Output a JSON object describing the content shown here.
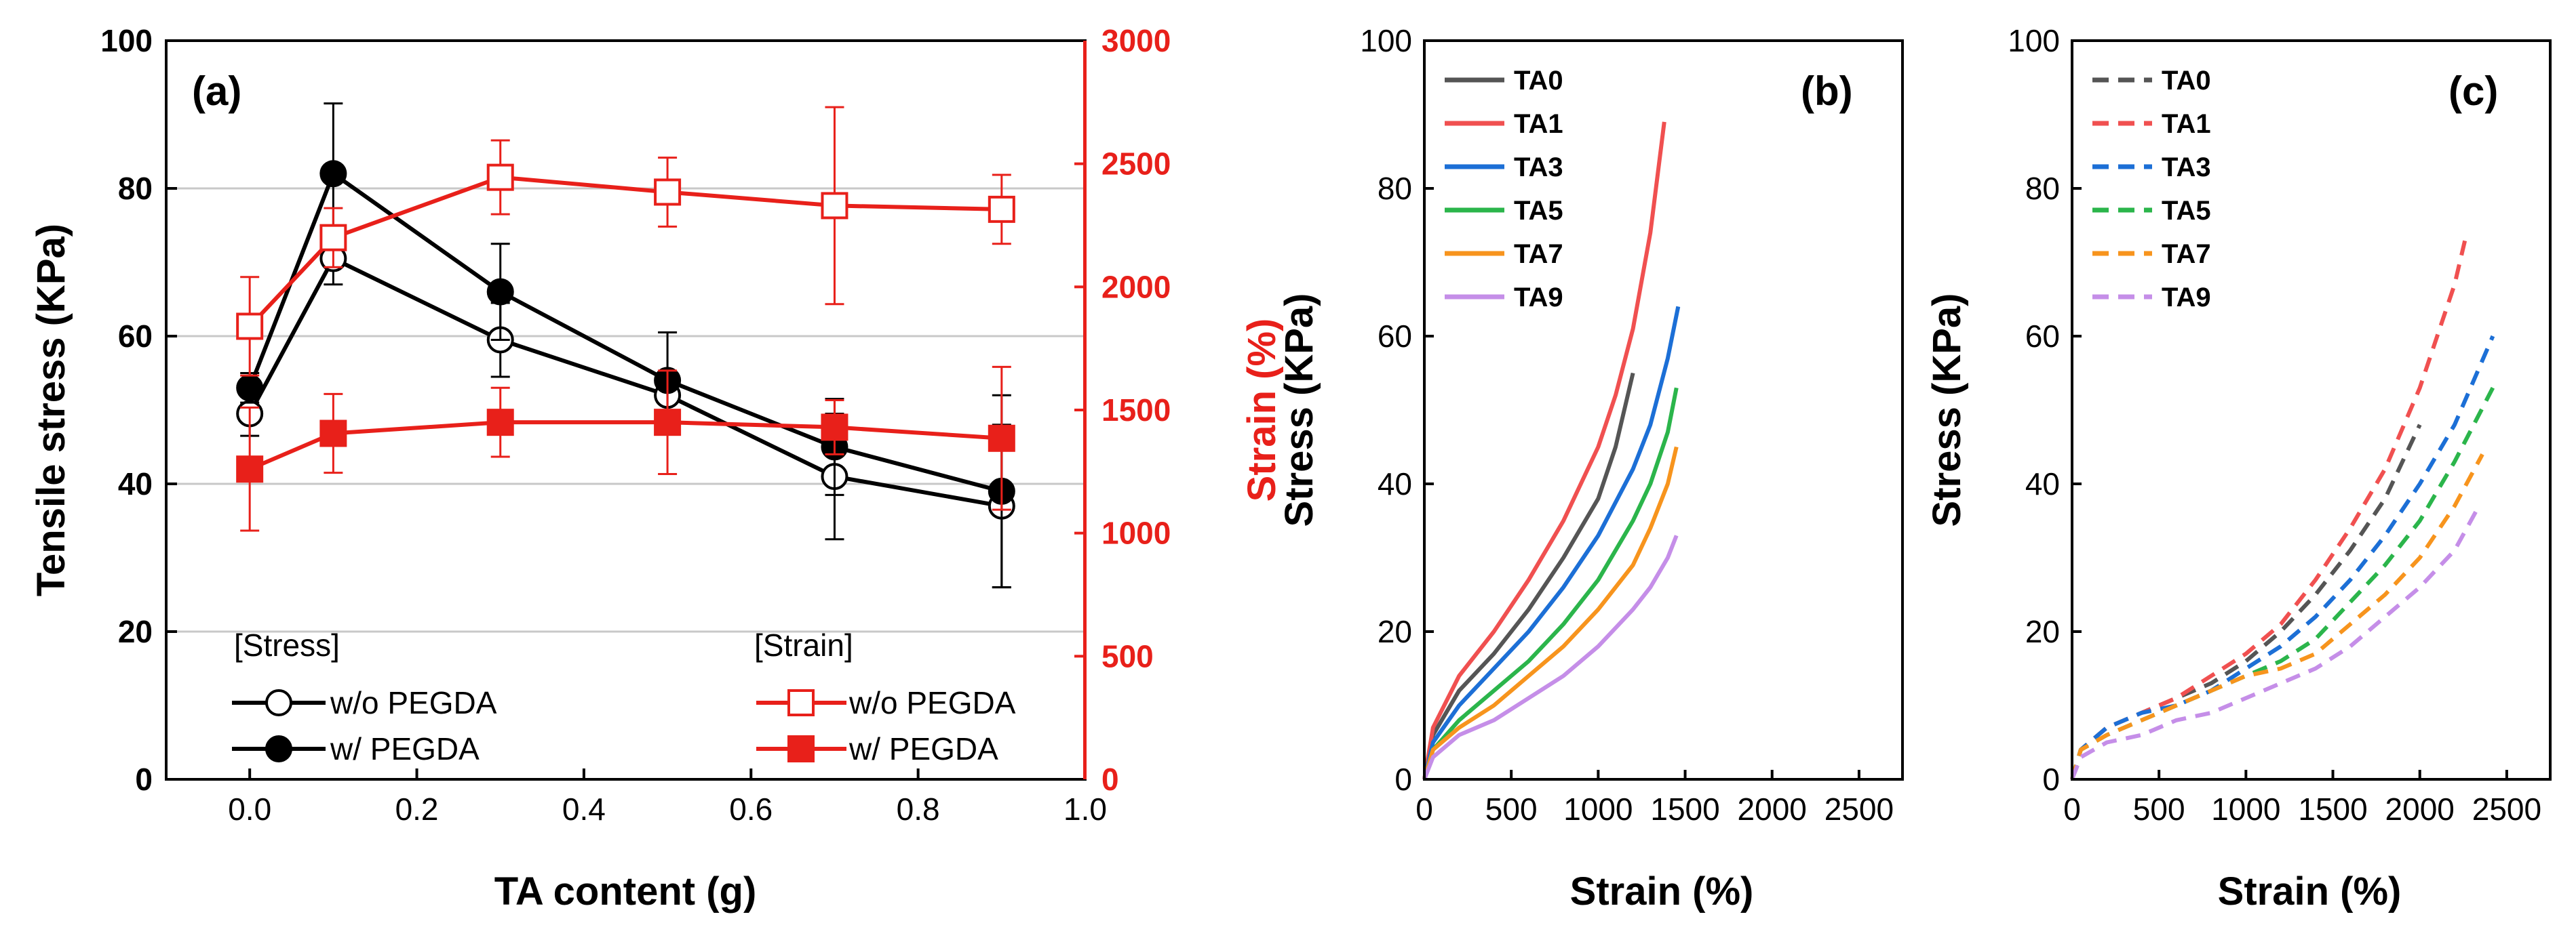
{
  "colors": {
    "black": "#000000",
    "red": "#e8201a",
    "grid": "#c8c8c8",
    "TA0": "#555555",
    "TA1": "#f05050",
    "TA3": "#1c6fd6",
    "TA5": "#2bb54b",
    "TA7": "#f7941d",
    "TA9": "#c58ee8"
  },
  "chart_data": [
    {
      "id": "a",
      "type": "line",
      "panel_label": "(a)",
      "xlabel": "TA content (g)",
      "ylabel": "Tensile stress (KPa)",
      "ylabel_right": "Strain (%)",
      "xlim": [
        -0.1,
        1.0
      ],
      "ylim": [
        0,
        100
      ],
      "ylim_right": [
        0,
        3000
      ],
      "x_ticks": [
        "0.0",
        "0.2",
        "0.4",
        "0.6",
        "0.8",
        "1.0"
      ],
      "y_ticks": [
        "0",
        "20",
        "40",
        "60",
        "80",
        "100"
      ],
      "y_ticks_right": [
        "0",
        "500",
        "1000",
        "1500",
        "2000",
        "2500",
        "3000"
      ],
      "grid_y": [
        20,
        40,
        60,
        80
      ],
      "legend_left_title": "[Stress]",
      "legend_right_title": "[Strain]",
      "x": [
        0.0,
        0.1,
        0.3,
        0.5,
        0.7,
        0.9
      ],
      "series": [
        {
          "name": "w/o PEGDA",
          "group": "stress",
          "axis": "left",
          "marker": "open-circle",
          "values": [
            49.5,
            70.5,
            59.5,
            52,
            41,
            37
          ],
          "errors": [
            3,
            3.5,
            5,
            3,
            8.5,
            11
          ]
        },
        {
          "name": "w/ PEGDA",
          "group": "stress",
          "axis": "left",
          "marker": "filled-circle",
          "values": [
            53,
            82,
            66,
            54,
            45,
            39
          ],
          "errors": [
            2,
            9.5,
            6.5,
            6.5,
            6.5,
            13
          ]
        },
        {
          "name": "w/o PEGDA",
          "group": "strain",
          "axis": "right",
          "marker": "open-square",
          "values": [
            1840,
            2200,
            2445,
            2385,
            2330,
            2315
          ],
          "errors": [
            200,
            120,
            150,
            140,
            400,
            140
          ]
        },
        {
          "name": "w/ PEGDA",
          "group": "strain",
          "axis": "right",
          "marker": "filled-square",
          "values": [
            1260,
            1405,
            1450,
            1450,
            1430,
            1385
          ],
          "errors": [
            250,
            160,
            140,
            210,
            110,
            290
          ]
        }
      ]
    },
    {
      "id": "b",
      "type": "line",
      "panel_label": "(b)",
      "xlabel": "Strain (%)",
      "ylabel": "Stress (KPa)",
      "xlim": [
        0,
        2750
      ],
      "ylim": [
        0,
        100
      ],
      "x_ticks": [
        "0",
        "500",
        "1000",
        "1500",
        "2000",
        "2500"
      ],
      "y_ticks": [
        "0",
        "20",
        "40",
        "60",
        "80",
        "100"
      ],
      "line_style": "solid",
      "series": [
        {
          "name": "TA0",
          "color_key": "TA0",
          "x": [
            0,
            50,
            200,
            400,
            600,
            800,
            1000,
            1100,
            1200
          ],
          "y": [
            0,
            6,
            12,
            17,
            23,
            30,
            38,
            45,
            55
          ]
        },
        {
          "name": "TA1",
          "color_key": "TA1",
          "x": [
            0,
            50,
            200,
            400,
            600,
            800,
            1000,
            1100,
            1200,
            1300,
            1380
          ],
          "y": [
            0,
            7,
            14,
            20,
            27,
            35,
            45,
            52,
            61,
            74,
            89
          ]
        },
        {
          "name": "TA3",
          "color_key": "TA3",
          "x": [
            0,
            50,
            200,
            400,
            600,
            800,
            1000,
            1200,
            1300,
            1400,
            1460
          ],
          "y": [
            0,
            5,
            10,
            15,
            20,
            26,
            33,
            42,
            48,
            57,
            64
          ]
        },
        {
          "name": "TA5",
          "color_key": "TA5",
          "x": [
            0,
            50,
            200,
            400,
            600,
            800,
            1000,
            1200,
            1300,
            1400,
            1450
          ],
          "y": [
            0,
            4,
            8,
            12,
            16,
            21,
            27,
            35,
            40,
            47,
            53
          ]
        },
        {
          "name": "TA7",
          "color_key": "TA7",
          "x": [
            0,
            50,
            200,
            400,
            600,
            800,
            1000,
            1200,
            1300,
            1400,
            1450
          ],
          "y": [
            0,
            4,
            7,
            10,
            14,
            18,
            23,
            29,
            34,
            40,
            45
          ]
        },
        {
          "name": "TA9",
          "color_key": "TA9",
          "x": [
            0,
            50,
            200,
            400,
            600,
            800,
            1000,
            1200,
            1300,
            1400,
            1450
          ],
          "y": [
            0,
            3,
            6,
            8,
            11,
            14,
            18,
            23,
            26,
            30,
            33
          ]
        }
      ]
    },
    {
      "id": "c",
      "type": "line",
      "panel_label": "(c)",
      "xlabel": "Strain (%)",
      "ylabel": "Stress (KPa)",
      "xlim": [
        0,
        2750
      ],
      "ylim": [
        0,
        100
      ],
      "x_ticks": [
        "0",
        "500",
        "1000",
        "1500",
        "2000",
        "2500"
      ],
      "y_ticks": [
        "0",
        "20",
        "40",
        "60",
        "80",
        "100"
      ],
      "line_style": "dashed",
      "series": [
        {
          "name": "TA0",
          "color_key": "TA0",
          "x": [
            0,
            50,
            200,
            400,
            600,
            800,
            1000,
            1200,
            1400,
            1600,
            1800,
            2000
          ],
          "y": [
            0,
            4,
            7,
            9,
            11,
            13,
            16,
            20,
            25,
            31,
            38,
            48
          ]
        },
        {
          "name": "TA1",
          "color_key": "TA1",
          "x": [
            0,
            50,
            200,
            400,
            600,
            800,
            1000,
            1200,
            1400,
            1600,
            1800,
            2000,
            2200,
            2260
          ],
          "y": [
            0,
            4,
            7,
            9,
            11,
            14,
            17,
            21,
            27,
            34,
            42,
            53,
            67,
            73
          ]
        },
        {
          "name": "TA3",
          "color_key": "TA3",
          "x": [
            0,
            50,
            200,
            400,
            600,
            800,
            1000,
            1200,
            1400,
            1600,
            1800,
            2000,
            2200,
            2420
          ],
          "y": [
            0,
            4,
            7,
            9,
            10,
            12,
            15,
            18,
            22,
            27,
            33,
            40,
            48,
            60
          ]
        },
        {
          "name": "TA5",
          "color_key": "TA5",
          "x": [
            0,
            50,
            200,
            400,
            600,
            800,
            1000,
            1200,
            1400,
            1600,
            1800,
            2000,
            2200,
            2420
          ],
          "y": [
            0,
            4,
            6,
            8,
            10,
            12,
            14,
            16,
            19,
            24,
            29,
            35,
            43,
            53
          ]
        },
        {
          "name": "TA7",
          "color_key": "TA7",
          "x": [
            0,
            50,
            200,
            400,
            600,
            800,
            1000,
            1200,
            1400,
            1600,
            1800,
            2000,
            2200,
            2360
          ],
          "y": [
            0,
            4,
            6,
            8,
            10,
            12,
            14,
            15,
            17,
            21,
            25,
            30,
            37,
            44
          ]
        },
        {
          "name": "TA9",
          "color_key": "TA9",
          "x": [
            0,
            50,
            200,
            400,
            600,
            800,
            1000,
            1200,
            1400,
            1600,
            1800,
            2000,
            2200,
            2340
          ],
          "y": [
            0,
            3,
            5,
            6,
            8,
            9,
            11,
            13,
            15,
            18,
            22,
            26,
            31,
            37
          ]
        }
      ]
    }
  ]
}
